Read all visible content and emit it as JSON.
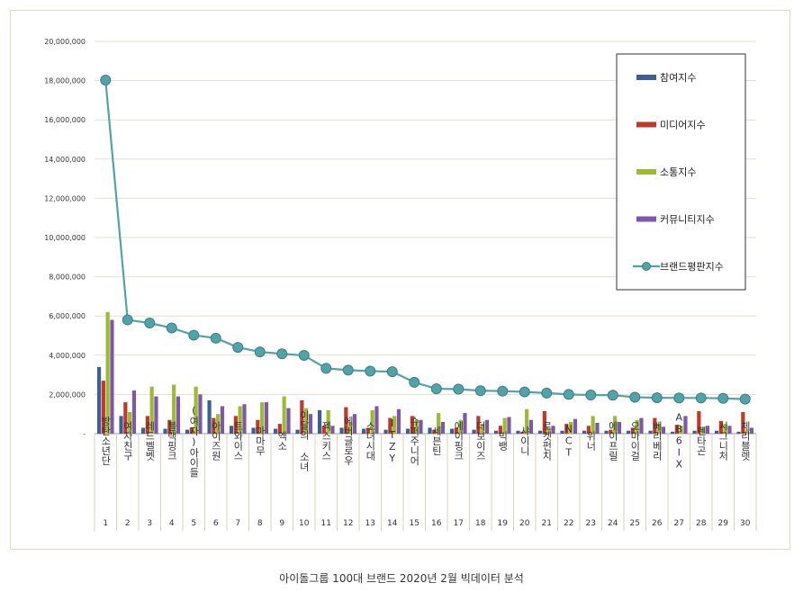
{
  "caption": "아이돌그룹 100대 브랜드 2020년 2월 빅데이터 분석",
  "chart_data": {
    "type": "bar",
    "title": "",
    "xlabel": "",
    "ylabel": "",
    "ylim": [
      0,
      20000000
    ],
    "yticks": [
      0,
      2000000,
      4000000,
      6000000,
      8000000,
      10000000,
      12000000,
      14000000,
      16000000,
      18000000,
      20000000
    ],
    "ytick_labels": [
      "-",
      "2,000,000",
      "4,000,000",
      "6,000,000",
      "8,000,000",
      "10,000,000",
      "12,000,000",
      "14,000,000",
      "16,000,000",
      "18,000,000",
      "20,000,000"
    ],
    "grid": true,
    "legend_position": "top-right",
    "categories": [
      "방탄소년단",
      "여자친구",
      "레드벨벳",
      "블랙핑크",
      "(여자)아이들",
      "아이즈원",
      "트와이스",
      "마마무",
      "엑소",
      "이달의 소녀",
      "젝스키스",
      "에버글로우",
      "소녀시대",
      "ITZY",
      "슈퍼주니어",
      "세븐틴",
      "에이핑크",
      "더보이즈",
      "빅뱅",
      "샤이니",
      "로켓펀치",
      "NCT",
      "위너",
      "에이프릴",
      "오마이걸",
      "베리베리",
      "AB6IX",
      "펜타곤",
      "시그니처",
      "체리블렛"
    ],
    "ranks": [
      "1",
      "2",
      "3",
      "4",
      "5",
      "6",
      "7",
      "8",
      "9",
      "10",
      "11",
      "12",
      "13",
      "14",
      "15",
      "16",
      "17",
      "18",
      "19",
      "20",
      "21",
      "22",
      "23",
      "24",
      "25",
      "26",
      "27",
      "28",
      "29",
      "30"
    ],
    "series": [
      {
        "name": "참여지수",
        "type": "bar",
        "color": "#3e5f95",
        "values": [
          3400000,
          900000,
          300000,
          250000,
          200000,
          1700000,
          400000,
          300000,
          250000,
          200000,
          1200000,
          300000,
          250000,
          200000,
          250000,
          300000,
          250000,
          200000,
          150000,
          150000,
          150000,
          150000,
          150000,
          150000,
          150000,
          150000,
          100000,
          150000,
          150000,
          100000
        ]
      },
      {
        "name": "미디어지수",
        "type": "bar",
        "color": "#c0392b",
        "values": [
          2700000,
          1600000,
          900000,
          700000,
          300000,
          800000,
          900000,
          700000,
          500000,
          1700000,
          400000,
          1350000,
          300000,
          800000,
          900000,
          200000,
          300000,
          900000,
          400000,
          100000,
          1150000,
          500000,
          400000,
          200000,
          300000,
          800000,
          450000,
          1150000,
          650000,
          1100000
        ]
      },
      {
        "name": "소통지수",
        "type": "bar",
        "color": "#9bbb33",
        "values": [
          6200000,
          1100000,
          2400000,
          2500000,
          2400000,
          1000000,
          1400000,
          1600000,
          1900000,
          1300000,
          1200000,
          600000,
          1200000,
          900000,
          700000,
          1050000,
          700000,
          500000,
          800000,
          1250000,
          300000,
          600000,
          900000,
          900000,
          700000,
          500000,
          400000,
          300000,
          500000,
          200000
        ]
      },
      {
        "name": "커뮤니티지수",
        "type": "bar",
        "color": "#7e57a6",
        "values": [
          5800000,
          2200000,
          1900000,
          1900000,
          2000000,
          1400000,
          1500000,
          1600000,
          1300000,
          1000000,
          400000,
          1000000,
          1400000,
          1250000,
          700000,
          600000,
          1050000,
          700000,
          850000,
          700000,
          400000,
          750000,
          550000,
          600000,
          800000,
          350000,
          900000,
          400000,
          400000,
          300000
        ]
      },
      {
        "name": "브랜드평판지수",
        "type": "line",
        "color": "#52a3a8",
        "values": [
          18030000,
          5800000,
          5640000,
          5390000,
          5020000,
          4870000,
          4400000,
          4170000,
          4070000,
          3990000,
          3330000,
          3240000,
          3190000,
          3160000,
          2620000,
          2290000,
          2270000,
          2190000,
          2170000,
          2130000,
          2070000,
          2000000,
          1970000,
          1960000,
          1860000,
          1830000,
          1820000,
          1820000,
          1800000,
          1760000
        ]
      }
    ]
  }
}
